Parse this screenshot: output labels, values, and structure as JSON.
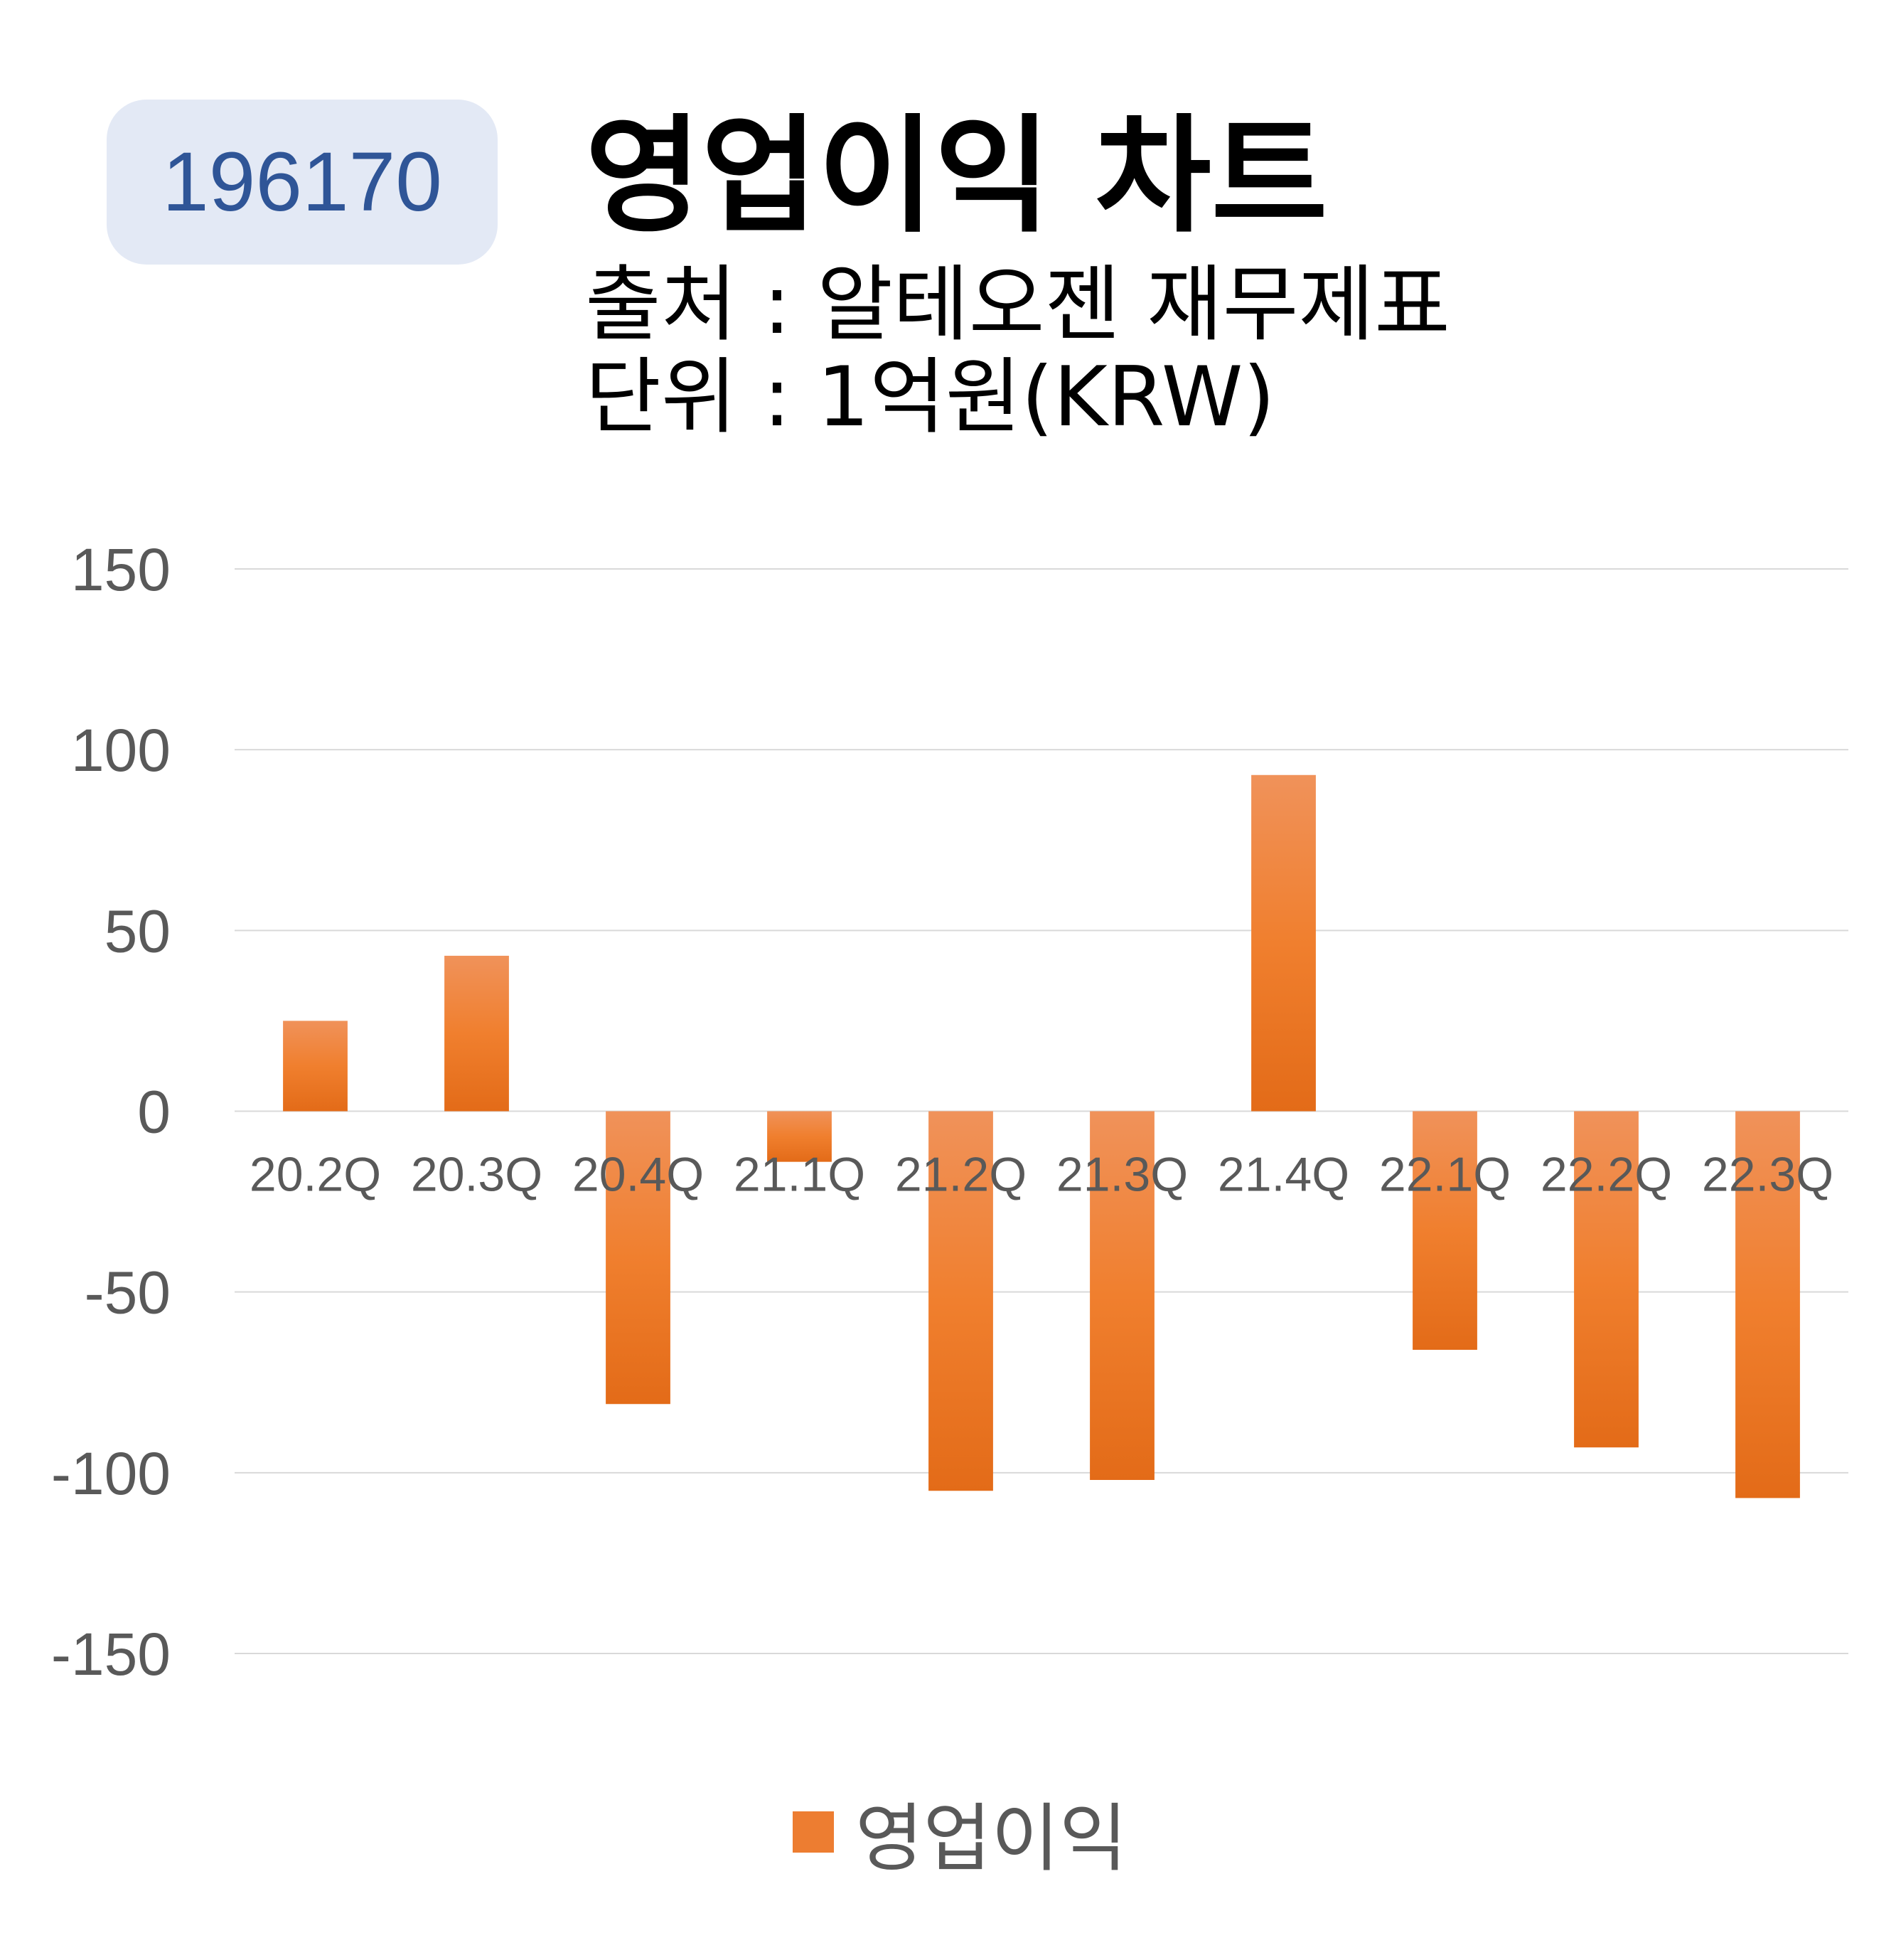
{
  "header": {
    "code": "196170",
    "title": "영업이익 차트",
    "source": "출처 : 알테오젠 재무제표",
    "unit": "단위 : 1억원(KRW)"
  },
  "colors": {
    "bar": "#ed7d31",
    "badge_bg": "#e3e9f5",
    "badge_text": "#2f5597",
    "grid": "#d9d9d9",
    "tick_text": "#595959"
  },
  "chart_data": {
    "type": "bar",
    "title": "영업이익 차트",
    "categories": [
      "20.2Q",
      "20.3Q",
      "20.4Q",
      "21.1Q",
      "21.2Q",
      "21.3Q",
      "21.4Q",
      "22.1Q",
      "22.2Q",
      "22.3Q"
    ],
    "series": [
      {
        "name": "영업이익",
        "values": [
          25,
          43,
          -81,
          -14,
          -105,
          -102,
          93,
          -66,
          -93,
          -107
        ]
      }
    ],
    "ylim": [
      -150,
      150
    ],
    "yticks": [
      150,
      100,
      50,
      0,
      -50,
      -100,
      -150
    ],
    "grid": true,
    "legend": "bottom"
  }
}
